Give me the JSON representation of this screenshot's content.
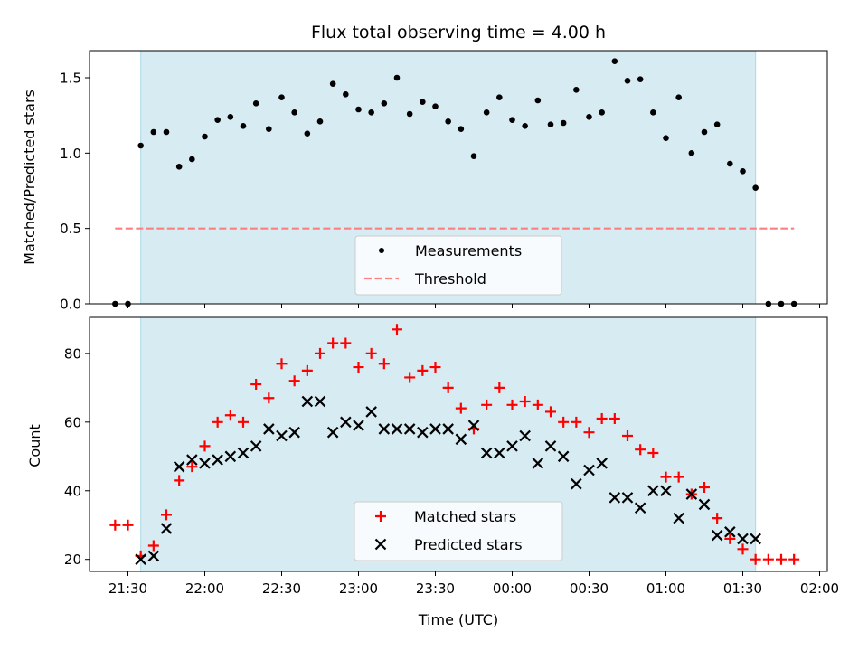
{
  "chart_data": [
    {
      "type": "scatter",
      "title": "Flux total observing time = 4.00 h",
      "ylabel": "Matched/Predicted stars",
      "xlabel": "",
      "ylim": [
        0,
        1.68
      ],
      "yticks": [
        "0.0",
        "0.5",
        "1.0",
        "1.5"
      ],
      "xlim": [
        "21:15",
        "02:03"
      ],
      "observing_window": [
        "21:35",
        "01:35"
      ],
      "grid": false,
      "legend_position": "lower-center",
      "series": [
        {
          "name": "Measurements",
          "color": "#000000",
          "marker": "dot",
          "x": [
            "21:25",
            "21:30",
            "21:35",
            "21:40",
            "21:45",
            "21:50",
            "21:55",
            "22:00",
            "22:05",
            "22:10",
            "22:15",
            "22:20",
            "22:25",
            "22:30",
            "22:35",
            "22:40",
            "22:45",
            "22:50",
            "22:55",
            "23:00",
            "23:05",
            "23:10",
            "23:15",
            "23:20",
            "23:25",
            "23:30",
            "23:35",
            "23:40",
            "23:45",
            "23:50",
            "23:55",
            "00:00",
            "00:05",
            "00:10",
            "00:15",
            "00:20",
            "00:25",
            "00:30",
            "00:35",
            "00:40",
            "00:45",
            "00:50",
            "00:55",
            "01:00",
            "01:05",
            "01:10",
            "01:15",
            "01:20",
            "01:25",
            "01:30",
            "01:35",
            "01:40",
            "01:45",
            "01:50"
          ],
          "values": [
            0.0,
            0.0,
            1.05,
            1.14,
            1.14,
            0.91,
            0.96,
            1.11,
            1.22,
            1.24,
            1.18,
            1.33,
            1.16,
            1.37,
            1.27,
            1.13,
            1.21,
            1.46,
            1.39,
            1.29,
            1.27,
            1.33,
            1.5,
            1.26,
            1.34,
            1.31,
            1.21,
            1.16,
            0.98,
            1.27,
            1.37,
            1.22,
            1.18,
            1.35,
            1.19,
            1.2,
            1.42,
            1.24,
            1.27,
            1.61,
            1.48,
            1.49,
            1.27,
            1.1,
            1.37,
            1.0,
            1.14,
            1.19,
            0.93,
            0.88,
            0.77,
            0.0,
            0.0,
            0.0
          ]
        },
        {
          "name": "Threshold",
          "color": "#ff7f7f",
          "style": "dashed",
          "x": [
            "21:25",
            "01:50"
          ],
          "values": [
            0.5,
            0.5
          ]
        }
      ]
    },
    {
      "type": "scatter",
      "title": "",
      "ylabel": "Count",
      "xlabel": "Time (UTC)",
      "ylim": [
        16.5,
        90.5
      ],
      "yticks": [
        "20",
        "40",
        "60",
        "80"
      ],
      "xlim": [
        "21:15",
        "02:03"
      ],
      "xticks": [
        "21:30",
        "22:00",
        "22:30",
        "23:00",
        "23:30",
        "00:00",
        "00:30",
        "01:00",
        "01:30",
        "02:00"
      ],
      "observing_window": [
        "21:35",
        "01:35"
      ],
      "grid": false,
      "legend_position": "lower-center",
      "series": [
        {
          "name": "Matched stars",
          "color": "#ff0000",
          "marker": "plus",
          "x": [
            "21:25",
            "21:30",
            "21:35",
            "21:40",
            "21:45",
            "21:50",
            "21:55",
            "22:00",
            "22:05",
            "22:10",
            "22:15",
            "22:20",
            "22:25",
            "22:30",
            "22:35",
            "22:40",
            "22:45",
            "22:50",
            "22:55",
            "23:00",
            "23:05",
            "23:10",
            "23:15",
            "23:20",
            "23:25",
            "23:30",
            "23:35",
            "23:40",
            "23:45",
            "23:50",
            "23:55",
            "00:00",
            "00:05",
            "00:10",
            "00:15",
            "00:20",
            "00:25",
            "00:30",
            "00:35",
            "00:40",
            "00:45",
            "00:50",
            "00:55",
            "01:00",
            "01:05",
            "01:10",
            "01:15",
            "01:20",
            "01:25",
            "01:30",
            "01:35",
            "01:40",
            "01:45",
            "01:50"
          ],
          "values": [
            30,
            30,
            21,
            24,
            33,
            43,
            47,
            53,
            60,
            62,
            60,
            71,
            67,
            77,
            72,
            75,
            80,
            83,
            83,
            76,
            80,
            77,
            87,
            73,
            75,
            76,
            70,
            64,
            58,
            65,
            70,
            65,
            66,
            65,
            63,
            60,
            60,
            57,
            61,
            61,
            56,
            52,
            51,
            44,
            44,
            39,
            41,
            32,
            26,
            23,
            20,
            20,
            20,
            20
          ]
        },
        {
          "name": "Predicted stars",
          "color": "#000000",
          "marker": "x",
          "x": [
            "21:35",
            "21:40",
            "21:45",
            "21:50",
            "21:55",
            "22:00",
            "22:05",
            "22:10",
            "22:15",
            "22:20",
            "22:25",
            "22:30",
            "22:35",
            "22:40",
            "22:45",
            "22:50",
            "22:55",
            "23:00",
            "23:05",
            "23:10",
            "23:15",
            "23:20",
            "23:25",
            "23:30",
            "23:35",
            "23:40",
            "23:45",
            "23:50",
            "23:55",
            "00:00",
            "00:05",
            "00:10",
            "00:15",
            "00:20",
            "00:25",
            "00:30",
            "00:35",
            "00:40",
            "00:45",
            "00:50",
            "00:55",
            "01:00",
            "01:05",
            "01:10",
            "01:15",
            "01:20",
            "01:25",
            "01:30",
            "01:35"
          ],
          "values": [
            20,
            21,
            29,
            47,
            49,
            48,
            49,
            50,
            51,
            53,
            58,
            56,
            57,
            66,
            66,
            57,
            60,
            59,
            63,
            58,
            58,
            58,
            57,
            58,
            58,
            55,
            59,
            51,
            51,
            53,
            56,
            48,
            53,
            50,
            42,
            46,
            48,
            38,
            38,
            35,
            40,
            40,
            32,
            39,
            36,
            27,
            28,
            26,
            26
          ]
        }
      ]
    }
  ]
}
